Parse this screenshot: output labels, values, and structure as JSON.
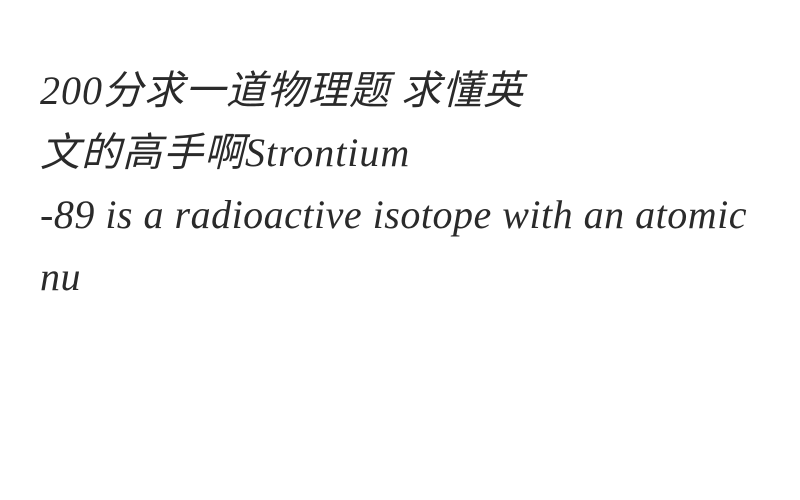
{
  "doc": {
    "background_color": "#ffffff",
    "text_color": "#2a2a2a",
    "font_size_pt": 30,
    "line1": "200分求一道物理题 求懂英",
    "line2": "文的高手啊Strontium",
    "line3": "-89 is a radioactive isotope with an atomic nu"
  }
}
